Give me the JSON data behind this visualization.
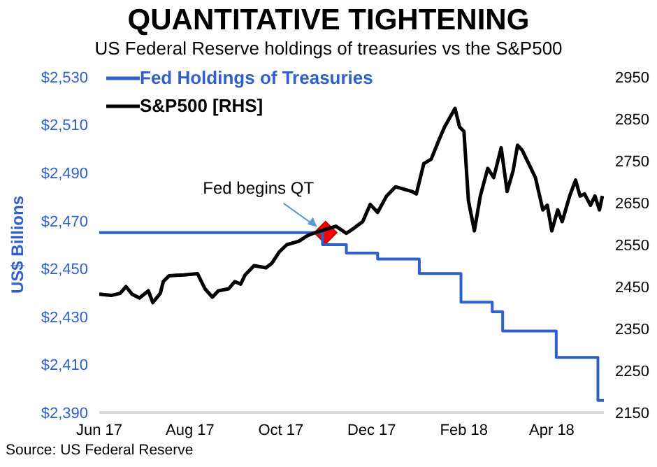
{
  "chart_data": {
    "type": "line",
    "title": "QUANTITATIVE TIGHTENING",
    "subtitle": "US Federal Reserve holdings of treasuries vs the S&P500",
    "ylabel": "US$ Billions",
    "xlim": [
      "2017-06-01",
      "2018-05-06"
    ],
    "xticks": [
      {
        "value": "2017-06-01",
        "label": "Jun 17"
      },
      {
        "value": "2017-08-01",
        "label": "Aug 17"
      },
      {
        "value": "2017-10-01",
        "label": "Oct 17"
      },
      {
        "value": "2017-12-01",
        "label": "Dec 17"
      },
      {
        "value": "2018-02-01",
        "label": "Feb 18"
      },
      {
        "value": "2018-04-01",
        "label": "Apr 18"
      }
    ],
    "ylim": [
      2390,
      2530
    ],
    "yticks": [
      {
        "value": 2390,
        "label": "$2,390"
      },
      {
        "value": 2410,
        "label": "$2,410"
      },
      {
        "value": 2430,
        "label": "$2,430"
      },
      {
        "value": 2450,
        "label": "$2,450"
      },
      {
        "value": 2470,
        "label": "$2,470"
      },
      {
        "value": 2490,
        "label": "$2,490"
      },
      {
        "value": 2510,
        "label": "$2,510"
      },
      {
        "value": 2530,
        "label": "$2,530"
      }
    ],
    "y2lim": [
      2150,
      2950
    ],
    "y2ticks": [
      2150,
      2250,
      2350,
      2450,
      2550,
      2650,
      2750,
      2850,
      2950
    ],
    "grid": false,
    "legend": "top left",
    "marker": "none",
    "line_style": "solid",
    "series": [
      {
        "name": "Fed Holdings of Treasuries",
        "color": "#2f5fc9",
        "x": [
          "2017-06-01",
          "2017-10-29",
          "2017-10-29",
          "2017-11-14",
          "2017-11-14",
          "2017-12-05",
          "2017-12-05",
          "2018-01-02",
          "2018-01-02",
          "2018-01-30",
          "2018-01-30",
          "2018-02-20",
          "2018-02-20",
          "2018-02-27",
          "2018-02-27",
          "2018-04-04",
          "2018-04-04",
          "2018-05-02",
          "2018-05-02",
          "2018-05-06"
        ],
        "values": [
          2465,
          2465,
          2460,
          2460,
          2456.5,
          2456.5,
          2454,
          2454,
          2448,
          2448,
          2436,
          2436,
          2432,
          2432,
          2424,
          2424,
          2413,
          2413,
          2395,
          2395
        ]
      },
      {
        "name": "S&P500 [RHS]",
        "color": "#000000",
        "axis": "y2",
        "x": [
          "2017-06-01",
          "2017-06-09",
          "2017-06-15",
          "2017-06-19",
          "2017-06-23",
          "2017-06-28",
          "2017-07-04",
          "2017-07-07",
          "2017-07-12",
          "2017-07-14",
          "2017-07-18",
          "2017-07-28",
          "2017-08-06",
          "2017-08-11",
          "2017-08-16",
          "2017-08-20",
          "2017-08-27",
          "2017-08-31",
          "2017-09-04",
          "2017-09-07",
          "2017-09-13",
          "2017-09-21",
          "2017-09-25",
          "2017-09-30",
          "2017-10-05",
          "2017-10-13",
          "2017-10-19",
          "2017-10-25",
          "2017-11-07",
          "2017-11-14",
          "2017-11-19",
          "2017-11-25",
          "2017-11-30",
          "2017-12-05",
          "2017-12-11",
          "2017-12-17",
          "2017-12-28",
          "2017-12-31",
          "2018-01-05",
          "2018-01-10",
          "2018-01-15",
          "2018-01-19",
          "2018-01-26",
          "2018-01-29",
          "2018-02-01",
          "2018-02-04",
          "2018-02-08",
          "2018-02-12",
          "2018-02-17",
          "2018-02-21",
          "2018-02-26",
          "2018-03-02",
          "2018-03-06",
          "2018-03-09",
          "2018-03-12",
          "2018-03-15",
          "2018-03-21",
          "2018-03-26",
          "2018-03-29",
          "2018-04-01",
          "2018-04-05",
          "2018-04-08",
          "2018-04-13",
          "2018-04-17",
          "2018-04-20",
          "2018-04-23",
          "2018-04-27",
          "2018-04-30",
          "2018-05-03",
          "2018-05-05"
        ],
        "values": [
          2432,
          2429,
          2434,
          2450,
          2432,
          2423,
          2440,
          2412,
          2434,
          2462,
          2476,
          2478,
          2481,
          2445,
          2425,
          2440,
          2445,
          2462,
          2456,
          2478,
          2500,
          2495,
          2506,
          2533,
          2550,
          2558,
          2572,
          2580,
          2594,
          2577,
          2589,
          2605,
          2646,
          2627,
          2666,
          2688,
          2677,
          2671,
          2743,
          2754,
          2798,
          2831,
          2875,
          2831,
          2820,
          2655,
          2583,
          2666,
          2732,
          2710,
          2781,
          2677,
          2726,
          2787,
          2776,
          2754,
          2710,
          2633,
          2644,
          2583,
          2633,
          2605,
          2666,
          2704,
          2666,
          2671,
          2644,
          2666,
          2633,
          2666
        ]
      }
    ],
    "annotations": [
      {
        "text": "Fed begins QT",
        "x": "2017-10-31",
        "y": 2465
      },
      "Source: US Federal Reserve"
    ]
  }
}
